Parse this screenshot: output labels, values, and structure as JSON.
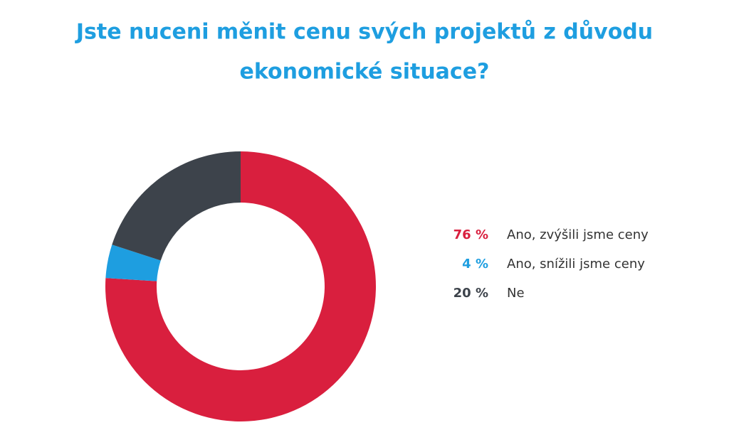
{
  "chart_data": {
    "type": "donut",
    "title": [
      "Jste nuceni měnit cenu svých projektů z důvodu",
      "ekonomické situace?"
    ],
    "categories": [
      "Ano, zvýšili jsme ceny",
      "Ano, snížili jsme ceny",
      "Ne"
    ],
    "values": [
      76,
      4,
      20
    ],
    "value_labels": [
      "76 %",
      "4 %",
      "20 %"
    ],
    "colors": [
      "#d91f3e",
      "#1e9ee0",
      "#3d434b"
    ],
    "title_color": "#1e9ee0"
  }
}
